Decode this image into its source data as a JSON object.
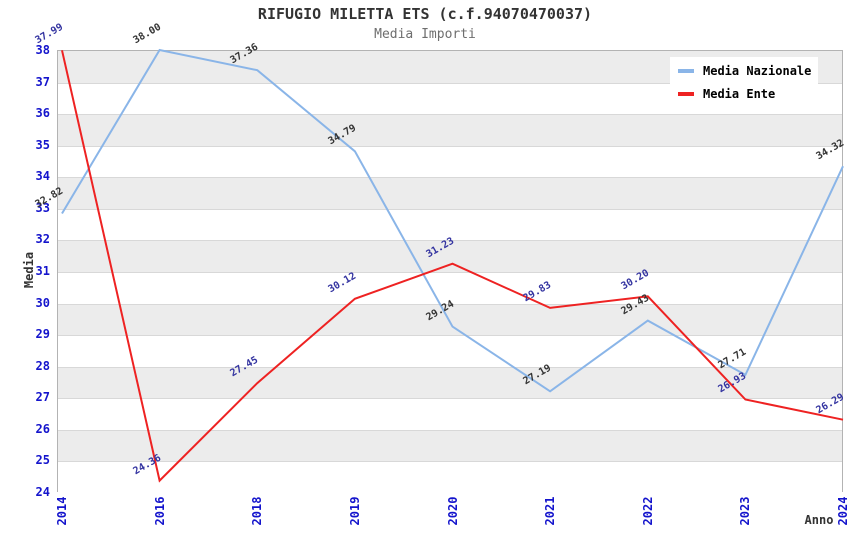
{
  "title": "RIFUGIO MILETTA ETS (c.f.94070470037)",
  "subtitle": "Media Importi",
  "chart_data": {
    "type": "line",
    "categories": [
      "2014",
      "2016",
      "2018",
      "2019",
      "2020",
      "2021",
      "2022",
      "2023",
      "2024"
    ],
    "series": [
      {
        "name": "Media Nazionale",
        "color": "#8ab5e8",
        "label_color": "#333333",
        "values": [
          32.82,
          38.0,
          37.36,
          34.79,
          29.24,
          27.19,
          29.43,
          27.71,
          34.32
        ]
      },
      {
        "name": "Media Ente",
        "color": "#ee2222",
        "label_color": "#3333a0",
        "values": [
          37.99,
          24.36,
          27.45,
          30.12,
          31.23,
          29.83,
          30.2,
          26.93,
          26.29
        ]
      }
    ],
    "xlabel": "Anno",
    "ylabel": "Media",
    "ylim": [
      24,
      38
    ],
    "ytick_step": 1,
    "grid": "horizontal-bands",
    "legend_position": "top-right"
  },
  "colors": {
    "axis_tick": "#1414cc",
    "grid_line": "#d8d8d8",
    "band_gray": "#ececec",
    "band_white": "#ffffff",
    "plot_border": "#b3b3b3",
    "title": "#333333",
    "subtitle": "#6e6e6e",
    "axis_title": "#333333"
  }
}
